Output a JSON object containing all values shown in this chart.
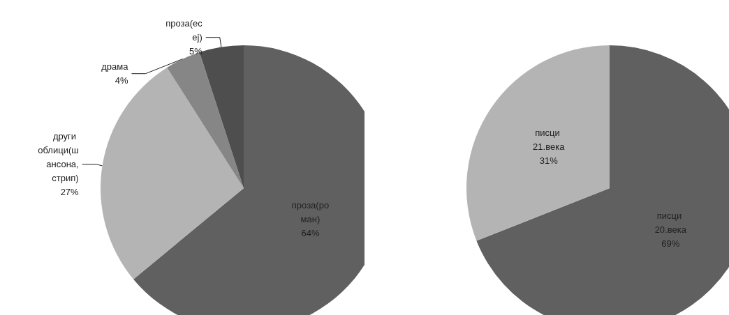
{
  "chart_data": [
    {
      "type": "pie",
      "categories": [
        "проза(роман)",
        "други облици(шансона,стрип)",
        "драма",
        "проза(есеј)"
      ],
      "values": [
        64,
        27,
        4,
        5
      ],
      "colors": [
        "#606060",
        "#b4b4b4",
        "#868686",
        "#4e4e4e"
      ],
      "value_labels": [
        "64%",
        "27%",
        "4%",
        "5%"
      ]
    },
    {
      "type": "pie",
      "categories": [
        "писци 20.века",
        "писци 21.века"
      ],
      "values": [
        69,
        31
      ],
      "colors": [
        "#606060",
        "#b4b4b4"
      ],
      "value_labels": [
        "69%",
        "31%"
      ]
    }
  ]
}
